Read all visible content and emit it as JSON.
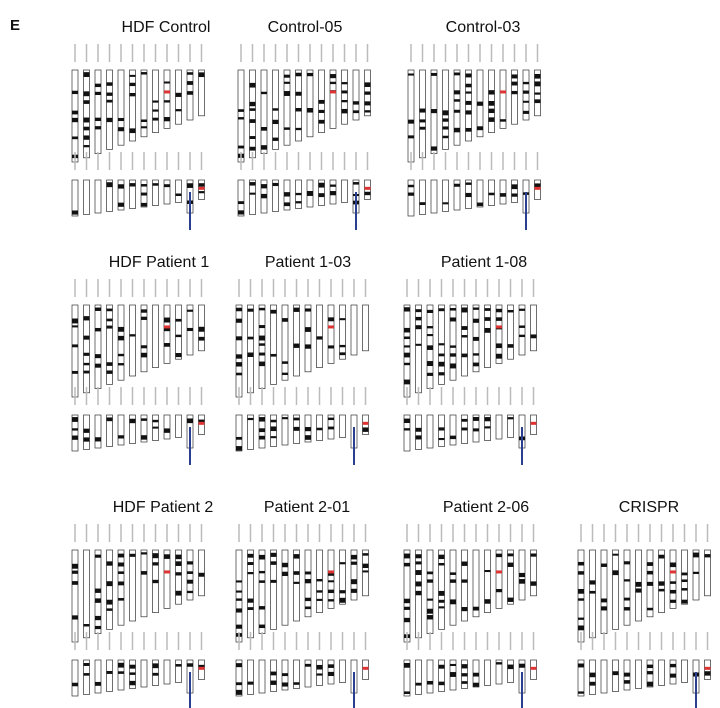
{
  "panel_label": "E",
  "panels": [
    {
      "title": "HDF Control"
    },
    {
      "title": "Control-05"
    },
    {
      "title": "Control-03"
    },
    {
      "title": "HDF Patient 1"
    },
    {
      "title": "Patient 1-03"
    },
    {
      "title": "Patient 1-08"
    },
    {
      "title": "HDF Patient 2"
    },
    {
      "title": "Patient 2-01"
    },
    {
      "title": "Patient 2-06"
    },
    {
      "title": "CRISPR"
    }
  ]
}
